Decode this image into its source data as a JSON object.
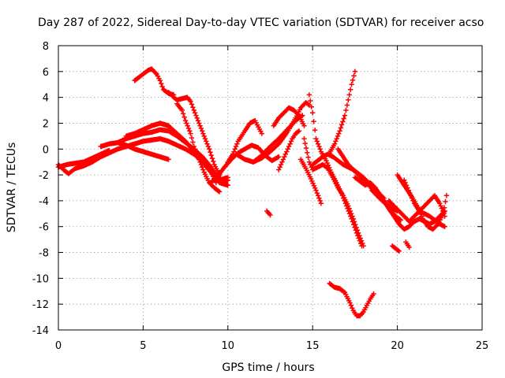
{
  "chart_data": {
    "type": "scatter",
    "title": "Day 287 of 2022, Sidereal Day-to-day VTEC variation (SDTVAR) for receiver acso",
    "xlabel": "GPS time / hours",
    "ylabel": "SDTVAR / TECUs",
    "xlim": [
      0,
      25
    ],
    "ylim": [
      -14,
      8
    ],
    "xticks": [
      0,
      5,
      10,
      15,
      20,
      25
    ],
    "yticks": [
      -14,
      -12,
      -10,
      -8,
      -6,
      -4,
      -2,
      0,
      2,
      4,
      6,
      8
    ],
    "grid": true,
    "marker": "+",
    "series": [
      {
        "name": "SDTVAR",
        "color": "#ff0000",
        "tracks": [
          {
            "x": [
              0.0,
              0.3,
              0.6,
              1.0,
              1.5,
              2.0,
              2.5,
              3.0,
              3.5,
              4.0,
              4.5,
              5.0,
              5.5,
              6.0,
              6.5,
              7.0,
              7.5,
              8.0,
              8.5,
              9.0,
              9.3
            ],
            "y": [
              -1.2,
              -1.6,
              -1.9,
              -1.5,
              -1.3,
              -1.0,
              -0.6,
              -0.3,
              0.0,
              0.2,
              0.4,
              0.6,
              0.7,
              0.8,
              0.6,
              0.3,
              0.0,
              -0.4,
              -1.0,
              -1.8,
              -2.6
            ]
          },
          {
            "x": [
              0.0,
              0.5,
              1.0,
              1.5,
              2.0,
              2.5,
              3.0
            ],
            "y": [
              -1.4,
              -1.2,
              -1.1,
              -1.0,
              -0.7,
              -0.4,
              -0.1
            ]
          },
          {
            "x": [
              2.5,
              3.0,
              3.5,
              4.0,
              4.5,
              5.0,
              5.5,
              6.0,
              6.5
            ],
            "y": [
              0.2,
              0.4,
              0.5,
              0.3,
              0.0,
              -0.2,
              -0.4,
              -0.6,
              -0.8
            ]
          },
          {
            "x": [
              3.5,
              4.0,
              4.5,
              5.0,
              5.5,
              6.0,
              6.5,
              7.0,
              7.5,
              8.0,
              8.5,
              9.0,
              9.5,
              10.0
            ],
            "y": [
              0.5,
              0.8,
              1.0,
              1.2,
              1.3,
              1.5,
              1.4,
              1.0,
              0.5,
              0.0,
              -0.6,
              -1.4,
              -2.4,
              -2.2
            ]
          },
          {
            "x": [
              4.0,
              4.5,
              5.0,
              5.5,
              6.0,
              6.5,
              7.0,
              7.5,
              8.0,
              8.5,
              9.0,
              9.5,
              10.0
            ],
            "y": [
              1.0,
              1.2,
              1.5,
              1.8,
              2.0,
              1.8,
              1.2,
              0.6,
              -0.2,
              -0.8,
              -1.8,
              -2.6,
              -2.8
            ]
          },
          {
            "x": [
              4.5,
              4.8,
              5.0,
              5.3,
              5.5,
              5.8,
              6.0,
              6.2,
              6.5,
              6.8
            ],
            "y": [
              5.3,
              5.6,
              5.8,
              6.1,
              6.2,
              5.8,
              5.3,
              4.6,
              4.3,
              4.2
            ]
          },
          {
            "x": [
              6.5,
              6.8,
              7.0,
              7.3,
              7.6,
              7.8,
              8.0,
              8.3,
              8.6,
              8.9,
              9.2,
              9.5,
              9.7,
              10.0
            ],
            "y": [
              4.4,
              4.0,
              3.8,
              3.9,
              4.0,
              3.7,
              3.0,
              2.0,
              1.0,
              0.0,
              -1.2,
              -2.0,
              -2.6,
              -2.4
            ]
          },
          {
            "x": [
              7.0,
              7.3,
              7.5,
              7.8,
              8.0,
              8.3,
              8.6,
              8.9,
              9.2,
              9.5
            ],
            "y": [
              3.5,
              3.0,
              2.2,
              1.2,
              0.2,
              -0.8,
              -1.8,
              -2.6,
              -3.0,
              -3.3
            ]
          },
          {
            "x": [
              9.0,
              9.4,
              9.8,
              10.2,
              10.6,
              11.0,
              11.4,
              11.8,
              12.2,
              12.6,
              13.0
            ],
            "y": [
              -2.6,
              -2.1,
              -1.4,
              -0.8,
              -0.3,
              0.0,
              0.3,
              0.1,
              -0.5,
              -0.9,
              -0.6
            ]
          },
          {
            "x": [
              10.0,
              10.3,
              10.6,
              11.0,
              11.3,
              11.6,
              12.0
            ],
            "y": [
              -1.0,
              -0.4,
              0.6,
              1.4,
              2.0,
              2.2,
              1.2
            ]
          },
          {
            "x": [
              10.5,
              11.0,
              11.5,
              12.0,
              12.5,
              13.0,
              13.5,
              14.0,
              14.3,
              14.6,
              14.8
            ],
            "y": [
              -0.4,
              -0.8,
              -1.0,
              -0.7,
              -0.2,
              0.4,
              1.3,
              2.4,
              3.2,
              3.6,
              3.4
            ]
          },
          {
            "x": [
              11.5,
              12.0,
              12.5,
              13.0,
              13.5,
              14.0,
              14.4
            ],
            "y": [
              -1.0,
              -0.5,
              0.2,
              0.8,
              1.5,
              2.2,
              2.6
            ]
          },
          {
            "x": [
              12.7,
              13.0,
              13.3,
              13.6,
              13.9,
              14.2,
              14.5
            ],
            "y": [
              1.8,
              2.4,
              2.8,
              3.2,
              3.0,
              2.6,
              1.8
            ]
          },
          {
            "x": [
              13.0,
              13.2,
              13.4,
              13.6,
              13.8,
              14.0,
              14.2
            ],
            "y": [
              -1.6,
              -1.0,
              -0.4,
              0.2,
              0.8,
              1.2,
              1.4
            ]
          },
          {
            "x": [
              12.3,
              12.5
            ],
            "y": [
              -4.8,
              -5.1
            ]
          },
          {
            "x": [
              14.3,
              14.6,
              14.9,
              15.2,
              15.5
            ],
            "y": [
              -0.8,
              -1.5,
              -2.3,
              -3.2,
              -4.2
            ]
          },
          {
            "x": [
              14.5,
              14.8,
              15.0,
              15.3,
              15.6,
              15.9,
              16.2,
              16.5,
              16.8,
              17.1,
              17.4,
              17.7,
              18.0
            ],
            "y": [
              0.8,
              -1.0,
              -1.6,
              -1.4,
              -1.2,
              -1.5,
              -2.2,
              -3.0,
              -3.6,
              -4.4,
              -5.4,
              -6.5,
              -7.5
            ]
          },
          {
            "x": [
              14.8,
              15.0,
              15.2,
              15.5,
              15.8,
              16.1,
              16.4,
              16.7,
              17.0,
              17.3,
              17.6,
              17.9
            ],
            "y": [
              4.2,
              2.8,
              0.8,
              -0.2,
              -0.9,
              -1.8,
              -2.6,
              -3.4,
              -4.4,
              -5.4,
              -6.5,
              -7.5
            ]
          },
          {
            "x": [
              15.0,
              15.3,
              15.6,
              15.9,
              16.2,
              16.5,
              16.8,
              17.1,
              17.4,
              17.7,
              18.0,
              18.3,
              18.6,
              18.9,
              19.2
            ],
            "y": [
              -1.2,
              -0.9,
              -0.6,
              -0.4,
              -0.6,
              -0.9,
              -1.2,
              -1.4,
              -1.6,
              -1.9,
              -2.2,
              -2.6,
              -3.0,
              -3.4,
              -3.8
            ]
          },
          {
            "x": [
              16.0,
              16.3,
              16.6,
              16.9,
              17.1,
              17.3,
              17.5
            ],
            "y": [
              -0.3,
              0.4,
              1.4,
              2.6,
              3.8,
              5.0,
              6.0
            ]
          },
          {
            "x": [
              16.5,
              16.8,
              17.1,
              17.4,
              17.7,
              18.0,
              18.3,
              18.6,
              18.9,
              19.2,
              19.5,
              19.8,
              20.1,
              20.4,
              20.7,
              21.0,
              21.3,
              21.6,
              21.9,
              22.2,
              22.5,
              22.8
            ],
            "y": [
              0.0,
              -0.6,
              -1.2,
              -1.6,
              -2.0,
              -2.4,
              -2.8,
              -3.2,
              -3.6,
              -4.0,
              -4.6,
              -5.2,
              -5.8,
              -6.2,
              -6.0,
              -5.6,
              -5.4,
              -5.6,
              -5.8,
              -5.6,
              -5.2,
              -4.8
            ]
          },
          {
            "x": [
              17.5,
              17.8,
              18.1,
              18.4,
              18.7,
              19.0,
              19.3,
              19.6,
              19.9,
              20.2
            ],
            "y": [
              -2.2,
              -2.5,
              -2.8,
              -2.6,
              -3.0,
              -3.6,
              -4.2,
              -4.8,
              -5.2,
              -5.5
            ]
          },
          {
            "x": [
              18.5,
              18.8,
              19.1,
              19.4,
              19.7,
              20.0
            ],
            "y": [
              -3.2,
              -3.6,
              -4.0,
              -4.3,
              -4.6,
              -4.8
            ]
          },
          {
            "x": [
              19.5,
              19.8,
              20.1,
              20.4,
              20.7,
              21.0,
              21.3,
              21.6,
              21.9,
              22.2,
              22.5,
              22.8
            ],
            "y": [
              -4.0,
              -4.4,
              -4.8,
              -5.2,
              -5.6,
              -5.2,
              -4.8,
              -4.4,
              -4.0,
              -3.6,
              -4.2,
              -5.2
            ]
          },
          {
            "x": [
              20.0,
              20.3,
              20.6,
              20.9,
              21.2,
              21.5,
              21.8,
              22.1,
              22.4,
              22.7,
              22.9
            ],
            "y": [
              -2.0,
              -2.6,
              -3.2,
              -3.8,
              -4.5,
              -5.4,
              -6.0,
              -6.2,
              -5.8,
              -5.0,
              -3.6
            ]
          },
          {
            "x": [
              20.4,
              20.6,
              20.8,
              21.0,
              21.3,
              21.6,
              21.9,
              22.2,
              22.5,
              22.8
            ],
            "y": [
              -2.4,
              -3.0,
              -3.6,
              -4.2,
              -4.8,
              -5.0,
              -5.2,
              -5.5,
              -5.8,
              -6.0
            ]
          },
          {
            "x": [
              19.7,
              19.9,
              20.1
            ],
            "y": [
              -7.5,
              -7.7,
              -7.9
            ]
          },
          {
            "x": [
              20.5,
              20.7
            ],
            "y": [
              -7.2,
              -7.6
            ]
          },
          {
            "x": [
              16.0,
              16.3,
              16.6,
              16.9,
              17.2,
              17.4,
              17.6,
              17.8,
              18.0,
              18.2,
              18.4,
              18.6
            ],
            "y": [
              -10.4,
              -10.7,
              -10.8,
              -11.1,
              -11.9,
              -12.5,
              -12.9,
              -12.9,
              -12.6,
              -12.1,
              -11.6,
              -11.2
            ]
          }
        ]
      }
    ]
  }
}
